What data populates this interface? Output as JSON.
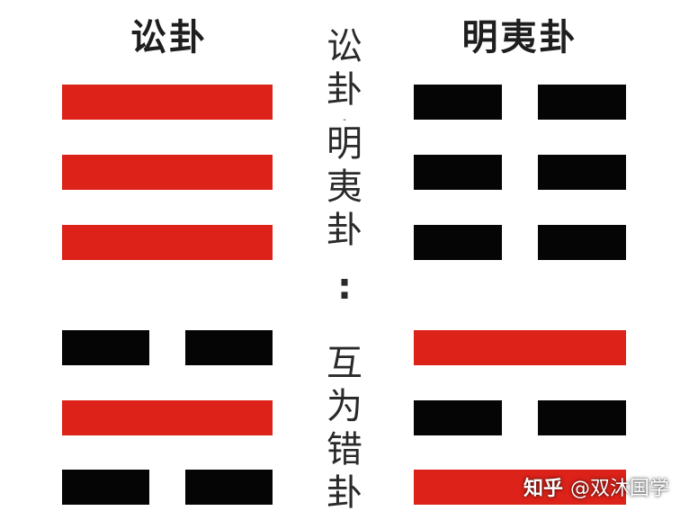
{
  "colors": {
    "yang": "#dc2219",
    "yin": "#050505",
    "text": "#1e1e1e"
  },
  "left_hexagram": {
    "title": "讼卦",
    "lines_top_to_bottom": [
      "yang",
      "yang",
      "yang",
      "yin",
      "yang",
      "yin"
    ]
  },
  "right_hexagram": {
    "title": "明夷卦",
    "lines_top_to_bottom": [
      "yin",
      "yin",
      "yin",
      "yang",
      "yin",
      "yang"
    ]
  },
  "center_caption": {
    "part1": [
      "讼",
      "卦"
    ],
    "dash": "-",
    "part2": [
      "明",
      "夷",
      "卦"
    ],
    "colon": ":",
    "part3": [
      "互",
      "为",
      "错",
      "卦"
    ]
  },
  "watermark": {
    "site": "知乎",
    "handle": "@双沐国学"
  }
}
